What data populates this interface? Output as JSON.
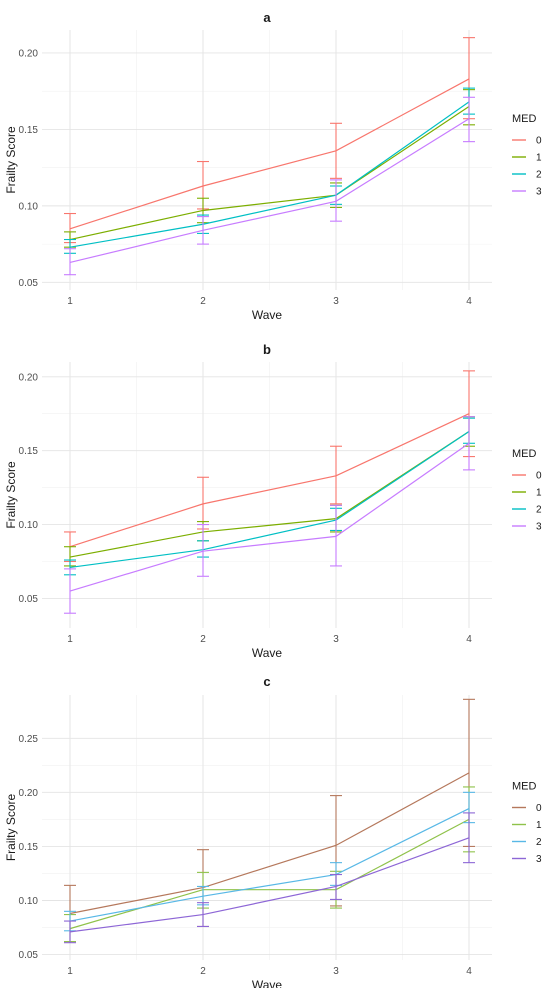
{
  "chart_data": [
    {
      "type": "line",
      "title": "a",
      "xlabel": "Wave",
      "ylabel": "Frailty Score",
      "x": [
        1,
        2,
        3,
        4
      ],
      "xticks": [
        "1",
        "2",
        "3",
        "4"
      ],
      "yticks": [
        "0.05",
        "0.10",
        "0.15",
        "0.20"
      ],
      "ylim": [
        0.045,
        0.215
      ],
      "legend_title": "MED",
      "legend_position": "right",
      "grid": true,
      "series": [
        {
          "name": "0",
          "color": "#f8766d",
          "values": [
            0.085,
            0.113,
            0.136,
            0.183
          ],
          "err_low": [
            0.076,
            0.098,
            0.118,
            0.157
          ],
          "err_high": [
            0.095,
            0.129,
            0.154,
            0.21
          ]
        },
        {
          "name": "1",
          "color": "#7cae00",
          "values": [
            0.078,
            0.097,
            0.107,
            0.165
          ],
          "err_low": [
            0.073,
            0.089,
            0.099,
            0.153
          ],
          "err_high": [
            0.083,
            0.105,
            0.115,
            0.176
          ]
        },
        {
          "name": "2",
          "color": "#00bfc4",
          "values": [
            0.073,
            0.088,
            0.107,
            0.168
          ],
          "err_low": [
            0.069,
            0.082,
            0.101,
            0.16
          ],
          "err_high": [
            0.078,
            0.094,
            0.113,
            0.177
          ]
        },
        {
          "name": "3",
          "color": "#c77cff",
          "values": [
            0.063,
            0.084,
            0.103,
            0.157
          ],
          "err_low": [
            0.055,
            0.075,
            0.09,
            0.142
          ],
          "err_high": [
            0.072,
            0.093,
            0.117,
            0.171
          ]
        }
      ]
    },
    {
      "type": "line",
      "title": "b",
      "xlabel": "Wave",
      "ylabel": "Frailty Score",
      "x": [
        1,
        2,
        3,
        4
      ],
      "xticks": [
        "1",
        "2",
        "3",
        "4"
      ],
      "yticks": [
        "0.05",
        "0.10",
        "0.15",
        "0.20"
      ],
      "ylim": [
        0.03,
        0.21
      ],
      "legend_title": "MED",
      "legend_position": "right",
      "grid": true,
      "series": [
        {
          "name": "0",
          "color": "#f8766d",
          "values": [
            0.085,
            0.114,
            0.133,
            0.175
          ],
          "err_low": [
            0.075,
            0.097,
            0.114,
            0.146
          ],
          "err_high": [
            0.095,
            0.132,
            0.153,
            0.204
          ]
        },
        {
          "name": "1",
          "color": "#7cae00",
          "values": [
            0.078,
            0.095,
            0.104,
            0.163
          ],
          "err_low": [
            0.072,
            0.089,
            0.095,
            0.153
          ],
          "err_high": [
            0.085,
            0.102,
            0.113,
            0.173
          ]
        },
        {
          "name": "2",
          "color": "#00bfc4",
          "values": [
            0.071,
            0.083,
            0.103,
            0.163
          ],
          "err_low": [
            0.066,
            0.078,
            0.096,
            0.155
          ],
          "err_high": [
            0.076,
            0.089,
            0.111,
            0.172
          ]
        },
        {
          "name": "3",
          "color": "#c77cff",
          "values": [
            0.055,
            0.082,
            0.092,
            0.155
          ],
          "err_low": [
            0.04,
            0.065,
            0.072,
            0.137
          ],
          "err_high": [
            0.07,
            0.1,
            0.113,
            0.173
          ]
        }
      ]
    },
    {
      "type": "line",
      "title": "c",
      "xlabel": "Wave",
      "ylabel": "Frailty Score",
      "x": [
        1,
        2,
        3,
        4
      ],
      "xticks": [
        "1",
        "2",
        "3",
        "4"
      ],
      "yticks": [
        "0.05",
        "0.10",
        "0.15",
        "0.20",
        "0.25"
      ],
      "ylim": [
        0.045,
        0.29
      ],
      "legend_title": "MED",
      "legend_position": "right",
      "grid": true,
      "series": [
        {
          "name": "0",
          "color": "#b5785c",
          "values": [
            0.088,
            0.112,
            0.151,
            0.218
          ],
          "err_low": [
            0.062,
            0.076,
            0.095,
            0.15
          ],
          "err_high": [
            0.114,
            0.147,
            0.197,
            0.286
          ]
        },
        {
          "name": "1",
          "color": "#8fc24a",
          "values": [
            0.074,
            0.11,
            0.11,
            0.175
          ],
          "err_low": [
            0.062,
            0.093,
            0.093,
            0.145
          ],
          "err_high": [
            0.087,
            0.126,
            0.127,
            0.205
          ]
        },
        {
          "name": "2",
          "color": "#58b8e6",
          "values": [
            0.081,
            0.104,
            0.124,
            0.185
          ],
          "err_low": [
            0.072,
            0.096,
            0.114,
            0.172
          ],
          "err_high": [
            0.09,
            0.113,
            0.135,
            0.2
          ]
        },
        {
          "name": "3",
          "color": "#8d66d6",
          "values": [
            0.071,
            0.087,
            0.113,
            0.158
          ],
          "err_low": [
            0.061,
            0.076,
            0.101,
            0.135
          ],
          "err_high": [
            0.081,
            0.098,
            0.124,
            0.181
          ]
        }
      ]
    }
  ]
}
